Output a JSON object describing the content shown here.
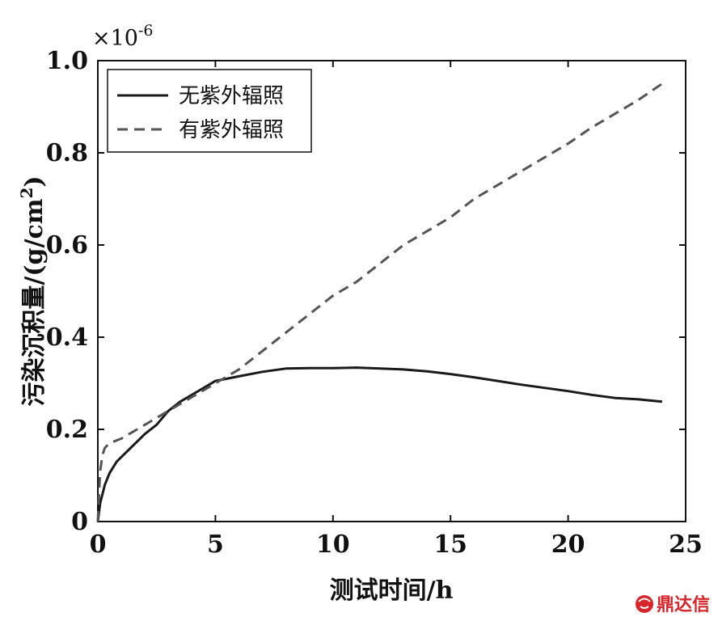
{
  "chart_data": {
    "type": "line",
    "title": "",
    "xlabel": "测试时间/h",
    "ylabel": "污染沉积量/(g/cm",
    "ylabel_sup": "2",
    "ylabel_close": ")",
    "y_multiplier": "×10",
    "y_multiplier_exp": "-6",
    "xlim": [
      0,
      25
    ],
    "ylim": [
      0,
      1.0
    ],
    "x_ticks": [
      0,
      5,
      10,
      15,
      20,
      25
    ],
    "x_tick_labels": [
      "0",
      "5",
      "10",
      "15",
      "20",
      "25"
    ],
    "y_ticks": [
      0,
      0.2,
      0.4,
      0.6,
      0.8,
      1.0
    ],
    "y_tick_labels": [
      "0",
      "0.2",
      "0.4",
      "0.6",
      "0.8",
      "1.0"
    ],
    "grid": false,
    "legend_position": "top-left",
    "series": [
      {
        "name": "无紫外辐照",
        "style": "solid",
        "color": "#1a1a1a",
        "x": [
          0,
          0.1,
          0.3,
          0.5,
          0.8,
          1.0,
          1.5,
          2.0,
          2.5,
          3.0,
          3.5,
          4.0,
          4.5,
          5.0,
          6.0,
          7.0,
          8.0,
          9.0,
          10.0,
          11.0,
          12.0,
          13.0,
          14.0,
          15.0,
          16.0,
          17.0,
          18.0,
          19.0,
          20.0,
          21.0,
          22.0,
          23.0,
          24.0
        ],
        "y": [
          0,
          0.04,
          0.08,
          0.105,
          0.13,
          0.14,
          0.165,
          0.19,
          0.21,
          0.24,
          0.26,
          0.275,
          0.29,
          0.305,
          0.315,
          0.325,
          0.332,
          0.333,
          0.333,
          0.334,
          0.332,
          0.33,
          0.326,
          0.32,
          0.313,
          0.305,
          0.297,
          0.29,
          0.283,
          0.275,
          0.268,
          0.265,
          0.26
        ]
      },
      {
        "name": "有紫外辐照",
        "style": "dashed",
        "color": "#555555",
        "x": [
          0,
          0.05,
          0.1,
          0.2,
          0.3,
          0.5,
          1.0,
          1.5,
          2.0,
          2.5,
          3.0,
          3.5,
          4.0,
          4.5,
          5.0,
          6.0,
          7.0,
          8.0,
          9.0,
          10.0,
          11.0,
          12.0,
          13.0,
          14.0,
          15.0,
          16.0,
          17.0,
          18.0,
          19.0,
          20.0,
          21.0,
          22.0,
          23.0,
          24.0
        ],
        "y": [
          0,
          0.06,
          0.11,
          0.145,
          0.16,
          0.17,
          0.18,
          0.195,
          0.21,
          0.225,
          0.24,
          0.255,
          0.27,
          0.285,
          0.3,
          0.33,
          0.37,
          0.41,
          0.45,
          0.49,
          0.52,
          0.56,
          0.6,
          0.63,
          0.66,
          0.7,
          0.73,
          0.76,
          0.79,
          0.82,
          0.855,
          0.885,
          0.915,
          0.95
        ]
      }
    ]
  },
  "watermark": {
    "text": "鼎达信",
    "color": "#d8252a",
    "icon": "brand-logo-icon"
  }
}
